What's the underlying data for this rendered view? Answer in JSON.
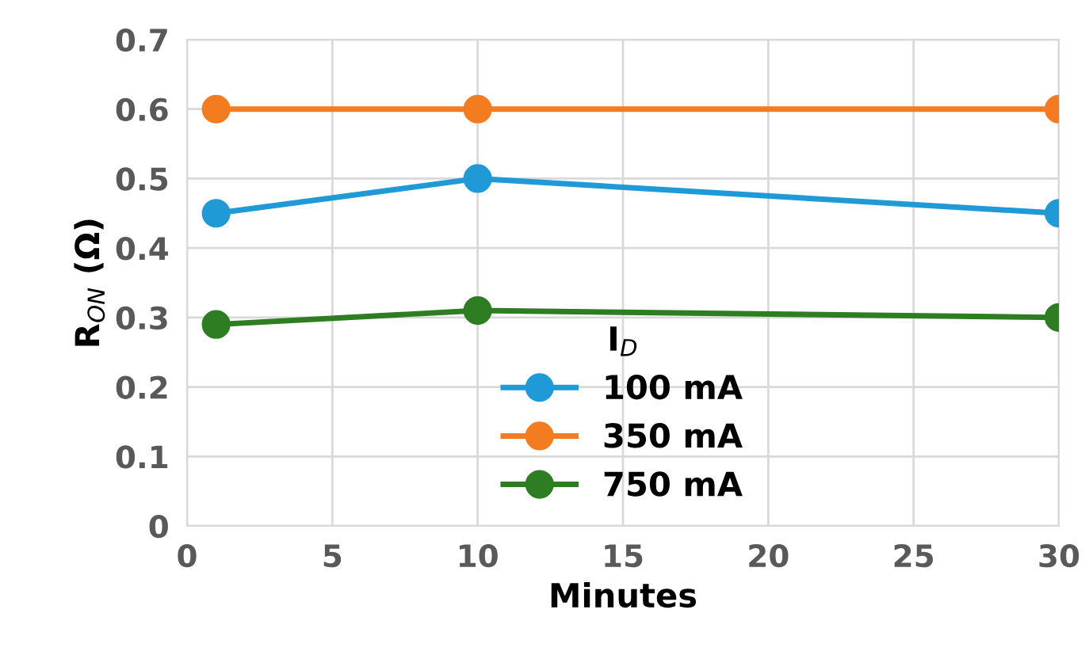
{
  "chart_data": {
    "type": "line",
    "xlabel": "Minutes",
    "ylabel": "R$_{ON}$ (Ω)",
    "legend_title": "I$_{D}$",
    "x": [
      1,
      10,
      30
    ],
    "series": [
      {
        "name": "100 mA",
        "color": "#1f9ad6",
        "values": [
          0.45,
          0.5,
          0.45
        ]
      },
      {
        "name": "350 mA",
        "color": "#f47c20",
        "values": [
          0.6,
          0.6,
          0.6
        ]
      },
      {
        "name": "750 mA",
        "color": "#2e7d23",
        "values": [
          0.29,
          0.31,
          0.3
        ]
      }
    ],
    "xlim": [
      0,
      30
    ],
    "xticks": [
      0,
      5,
      10,
      15,
      20,
      25,
      30
    ],
    "ylim": [
      0,
      0.7
    ],
    "yticks": [
      0,
      0.1,
      0.2,
      0.3,
      0.4,
      0.5,
      0.6,
      0.7
    ],
    "grid": true,
    "legend": "bottom",
    "marker": "circle",
    "line_style": "solid"
  }
}
